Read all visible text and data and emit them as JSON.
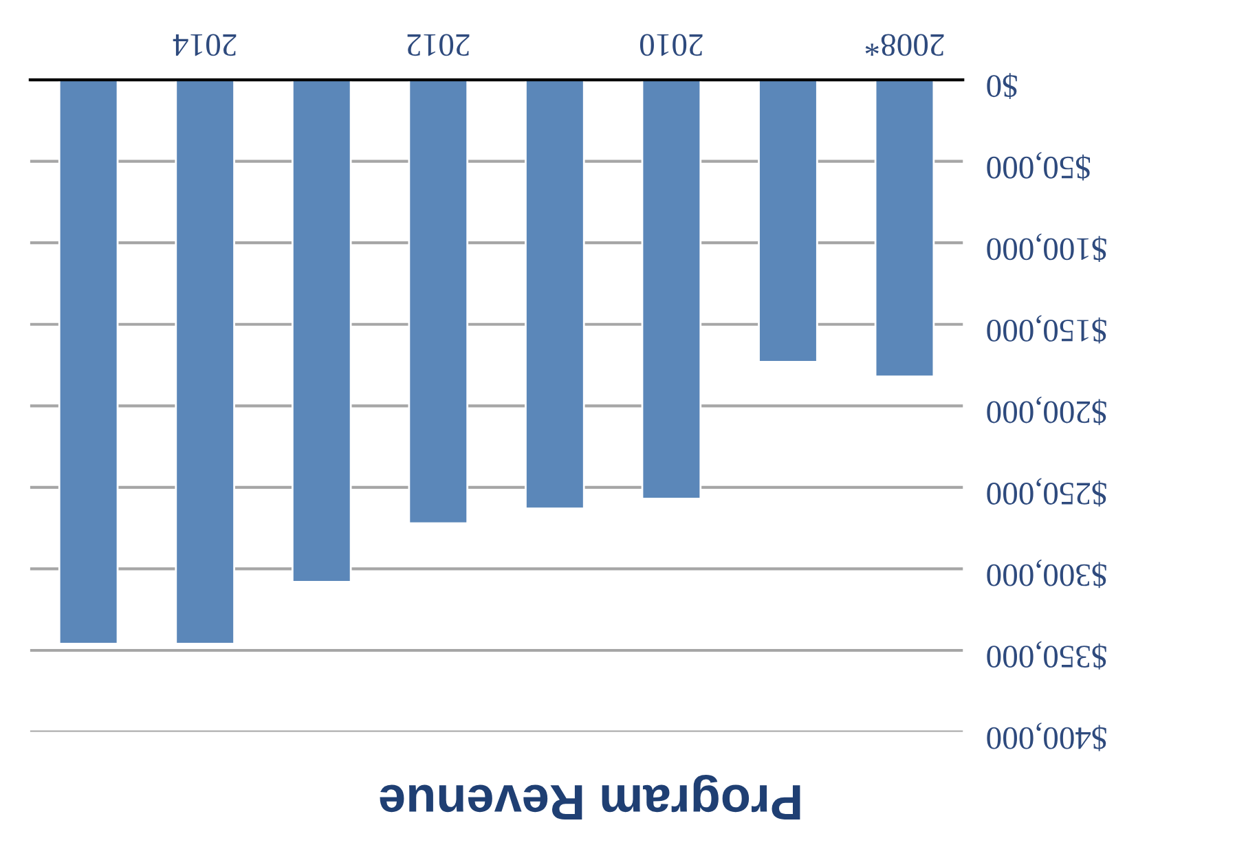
{
  "chart_data": {
    "type": "bar",
    "title": "Program Revenue",
    "categories": [
      null,
      "2014",
      null,
      "2012",
      null,
      "2010",
      null,
      "2008*"
    ],
    "values": [
      346000,
      346000,
      308000,
      272000,
      263000,
      257000,
      173000,
      182000
    ],
    "color": "#5b87b9",
    "ylim": [
      400000,
      0
    ],
    "yticks": [
      {
        "value": 0,
        "label": "$0"
      },
      {
        "value": 50000,
        "label": "$50,000"
      },
      {
        "value": 100000,
        "label": "$100,000"
      },
      {
        "value": 150000,
        "label": "$150,000"
      },
      {
        "value": 200000,
        "label": "$200,000"
      },
      {
        "value": 250000,
        "label": "$250,000"
      },
      {
        "value": 300000,
        "label": "$300,000"
      },
      {
        "value": 350000,
        "label": "$350,000"
      },
      {
        "value": 400000,
        "label": "$400,000"
      }
    ],
    "grid": "y",
    "legend": false
  }
}
